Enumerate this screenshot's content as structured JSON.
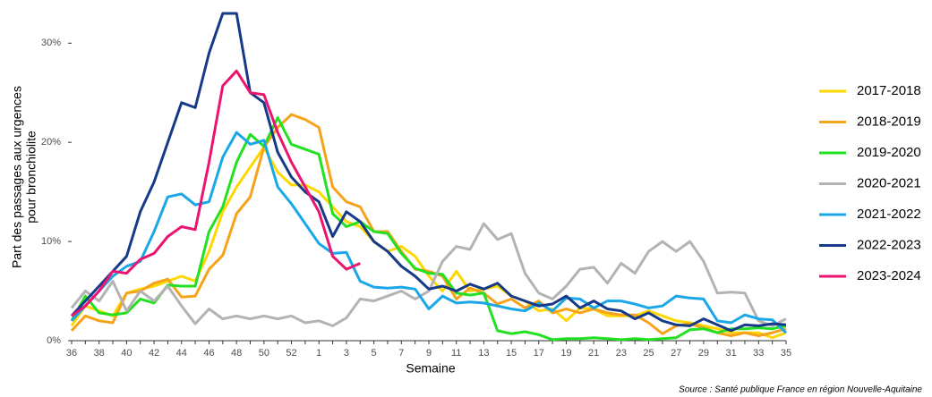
{
  "chart_data": {
    "type": "line",
    "xlabel": "Semaine",
    "ylabel": [
      "Part des passages aux urgences",
      "pour bronchiolite"
    ],
    "source": "Source : Santé publique France en région Nouvelle-Aquitaine",
    "categories": [
      "36",
      null,
      "38",
      null,
      "40",
      null,
      "42",
      null,
      "44",
      null,
      "46",
      null,
      "48",
      null,
      "50",
      null,
      "52",
      null,
      "1",
      null,
      "3",
      null,
      "5",
      null,
      "7",
      null,
      "9",
      null,
      "11",
      null,
      "13",
      null,
      "15",
      null,
      "17",
      null,
      "19",
      null,
      "21",
      null,
      "23",
      null,
      "25",
      null,
      "27",
      null,
      "29",
      null,
      "31",
      null,
      "33",
      null,
      "35"
    ],
    "ylim": [
      0,
      33
    ],
    "yticks": [
      {
        "value": 0,
        "label": "0%"
      },
      {
        "value": 10,
        "label": "10%"
      },
      {
        "value": 20,
        "label": "20%"
      },
      {
        "value": 30,
        "label": "30%"
      }
    ],
    "grid": false,
    "legend": "right",
    "series": [
      {
        "name": "2017-2018",
        "color": "#ffd700",
        "values": [
          1.5,
          3.5,
          3,
          2.5,
          4.8,
          5.2,
          5.5,
          6,
          6.5,
          6,
          9,
          13,
          15.5,
          17.5,
          19.5,
          17,
          15.7,
          15.7,
          15,
          13.5,
          12,
          11.5,
          10,
          9,
          9.5,
          8.5,
          6.5,
          5,
          7,
          5,
          5.2,
          5.5,
          4.5,
          4,
          3,
          3.2,
          2,
          3.3,
          3.2,
          2.5,
          2.5,
          2.5,
          3,
          2.5,
          2,
          1.8,
          1.5,
          1.2,
          0.8,
          0.8,
          0.8,
          0.3,
          0.8
        ]
      },
      {
        "name": "2018-2019",
        "color": "#f5a31a",
        "values": [
          1,
          2.5,
          2,
          1.8,
          4.8,
          5,
          5.8,
          6.2,
          4.4,
          4.5,
          7.2,
          8.6,
          12.8,
          14.5,
          19.5,
          21.5,
          22.8,
          22.3,
          21.5,
          15.5,
          14,
          13.5,
          11,
          11,
          9,
          7.2,
          7,
          6.5,
          4.2,
          5.3,
          4.8,
          3.7,
          4.2,
          3.3,
          4,
          2.8,
          3.2,
          2.8,
          3.2,
          2.8,
          2.6,
          2.6,
          1.8,
          0.7,
          1.5,
          1.7,
          1.3,
          0.8,
          0.5,
          0.8,
          0.5,
          0.8,
          1.2
        ]
      },
      {
        "name": "2019-2020",
        "color": "#22e022",
        "values": [
          2,
          4.5,
          2.8,
          2.6,
          2.8,
          4.2,
          3.8,
          5.6,
          5.5,
          5.5,
          11,
          13.5,
          18,
          20.8,
          19.6,
          22.5,
          19.8,
          19.3,
          18.8,
          12.8,
          11.5,
          12,
          11,
          10.8,
          8.8,
          7.3,
          6.8,
          6.7,
          4.8,
          4.6,
          4.8,
          1,
          0.7,
          0.9,
          0.6,
          0.1,
          0.2,
          0.2,
          0.3,
          0.2,
          0.1,
          0.2,
          0.1,
          0.2,
          0.3,
          1.1,
          1.2,
          0.8,
          1.2,
          1.2,
          1.3,
          1.2,
          1.5
        ]
      },
      {
        "name": "2020-2021",
        "color": "#b3b3b3",
        "values": [
          3.3,
          5,
          4,
          6,
          3,
          5,
          4,
          5.5,
          3.5,
          1.7,
          3.2,
          2.2,
          2.5,
          2.2,
          2.5,
          2.2,
          2.5,
          1.8,
          2,
          1.5,
          2.3,
          4.2,
          4,
          4.5,
          5,
          4.2,
          5,
          8,
          9.5,
          9.2,
          11.8,
          10.2,
          10.8,
          6.8,
          4.8,
          4.2,
          5.5,
          7.2,
          7.4,
          5.8,
          7.8,
          6.8,
          9,
          10,
          9,
          10,
          8,
          4.8,
          4.9,
          4.8,
          2,
          1.5,
          2.2
        ]
      },
      {
        "name": "2021-2022",
        "color": "#1aa7e8",
        "values": [
          2,
          3.5,
          5,
          6.5,
          7.5,
          8,
          11,
          14.5,
          14.8,
          13.7,
          14,
          18.5,
          21,
          19.8,
          20.2,
          15.5,
          13.8,
          11.8,
          9.8,
          8.8,
          8.9,
          6,
          5.4,
          5.3,
          5.4,
          5.2,
          3.2,
          4.5,
          3.8,
          3.9,
          3.8,
          3.5,
          3.2,
          3,
          3.8,
          3,
          4.3,
          4.2,
          3.3,
          4,
          4,
          3.7,
          3.3,
          3.5,
          4.5,
          4.3,
          4.2,
          2,
          1.8,
          2.6,
          2.2,
          2.1,
          0.8
        ]
      },
      {
        "name": "2022-2023",
        "color": "#163a87",
        "values": [
          2.5,
          4,
          5.5,
          7,
          8.5,
          13,
          16,
          20,
          24,
          23.5,
          29,
          33,
          33,
          25,
          24,
          19,
          16.5,
          15,
          14,
          10.5,
          13,
          12,
          10,
          9,
          7.5,
          6.5,
          5.2,
          5.5,
          5,
          5.7,
          5.2,
          5.8,
          4.5,
          4,
          3.5,
          3.7,
          4.5,
          3.3,
          4,
          3.2,
          3,
          2.2,
          2.8,
          2,
          1.6,
          1.5,
          2.2,
          1.6,
          1,
          1.6,
          1.5,
          1.7,
          1.6
        ]
      },
      {
        "name": "2023-2024",
        "color": "#ec1470",
        "values": [
          2.5,
          3.5,
          5,
          7,
          6.8,
          8.2,
          8.8,
          10.5,
          11.5,
          11.2,
          18,
          25.7,
          27.2,
          25,
          24.8,
          21,
          18,
          15.5,
          13,
          8.5,
          7.2,
          7.8,
          null,
          null,
          null,
          null,
          null,
          null,
          null,
          null,
          null,
          null,
          null,
          null,
          null,
          null,
          null,
          null,
          null,
          null,
          null,
          null,
          null,
          null,
          null,
          null,
          null,
          null,
          null,
          null,
          null,
          null,
          null
        ]
      }
    ]
  }
}
